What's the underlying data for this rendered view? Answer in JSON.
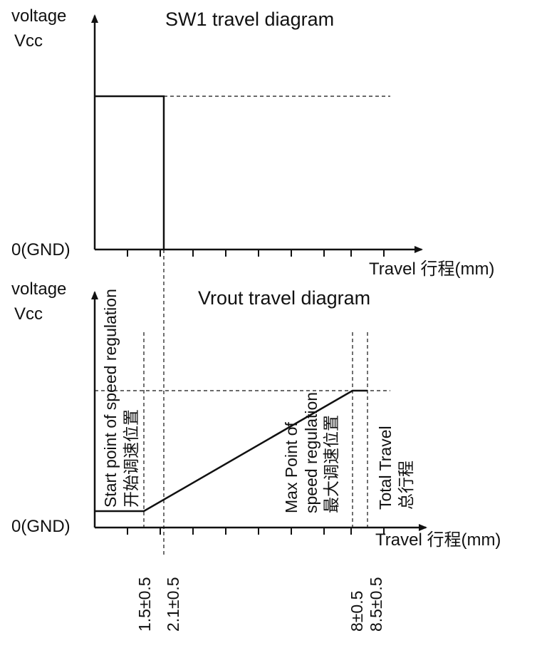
{
  "sw1": {
    "title": "SW1 travel diagram",
    "y_label_line1": "voltage",
    "y_label_line2": "Vcc",
    "zero_label": "0(GND)",
    "x_label": "Travel 行程(mm)"
  },
  "vrout": {
    "title": "Vrout travel diagram",
    "y_label_line1": "voltage",
    "y_label_line2": "Vcc",
    "zero_label": "0(GND)",
    "x_label": "Travel 行程(mm)",
    "start_label_line1": "Start point of speed regulation",
    "start_label_line2": "开始调速位置",
    "max_label_line1": "Max Point of",
    "max_label_line2": "speed regulation",
    "max_label_line3": "最大调速位置",
    "total_label_line1": "Total Travel",
    "total_label_line2": "总行程"
  },
  "ticks": {
    "t1": "1.5±0.5",
    "t2": "2.1±0.5",
    "t3": "8±0.5",
    "t4": "8.5±0.5"
  },
  "colors": {
    "line": "#111111",
    "background": "#ffffff"
  }
}
